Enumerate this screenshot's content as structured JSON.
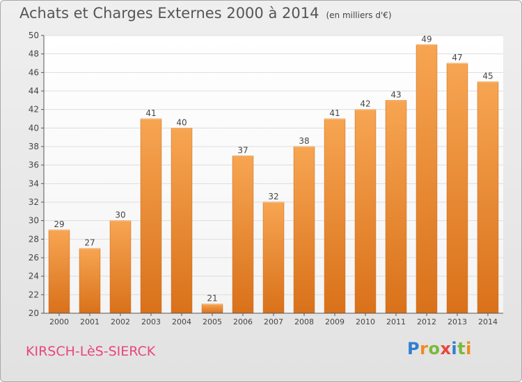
{
  "header": {
    "title": "Achats et Charges Externes 2000 à 2014",
    "subtitle": "(en milliers d'€)"
  },
  "footer": {
    "commune": "KIRSCH-LèS-SIERCK",
    "logo_letters": [
      {
        "ch": "P",
        "color": "#2f7fd0"
      },
      {
        "ch": "r",
        "color": "#f08a1c"
      },
      {
        "ch": "o",
        "color": "#7ab93a"
      },
      {
        "ch": "x",
        "color": "#e8463a"
      },
      {
        "ch": "i",
        "color": "#2f7fd0"
      },
      {
        "ch": "t",
        "color": "#7ab93a"
      },
      {
        "ch": "i",
        "color": "#f08a1c"
      }
    ]
  },
  "chart_data": {
    "type": "bar",
    "categories": [
      "2000",
      "2001",
      "2002",
      "2003",
      "2004",
      "2005",
      "2006",
      "2007",
      "2008",
      "2009",
      "2010",
      "2011",
      "2012",
      "2013",
      "2014"
    ],
    "values": [
      29,
      27,
      30,
      41,
      40,
      21,
      37,
      32,
      38,
      41,
      42,
      43,
      49,
      47,
      45
    ],
    "title": "Achats et Charges Externes 2000 à 2014",
    "ylim": [
      20,
      50
    ],
    "yticks": [
      20,
      22,
      24,
      26,
      28,
      30,
      32,
      34,
      36,
      38,
      40,
      42,
      44,
      46,
      48,
      50
    ],
    "grid": true,
    "bar_color_top": "#f7a552",
    "bar_color_bottom": "#d9711a"
  }
}
